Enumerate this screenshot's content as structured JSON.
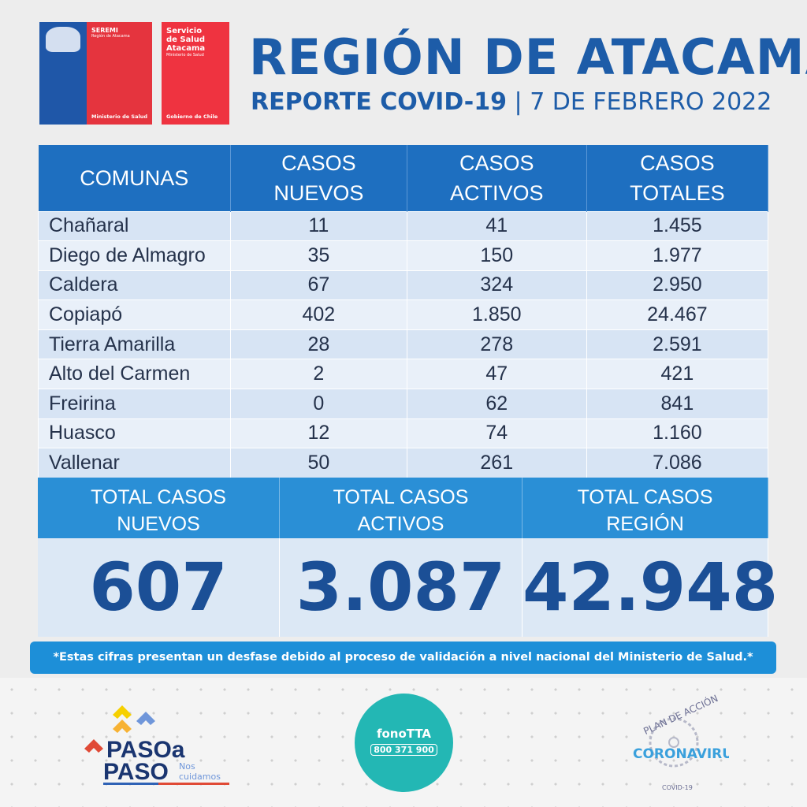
{
  "logos": {
    "seremi": {
      "title": "SEREMI",
      "region": "Región de Atacama",
      "ministry": "Ministerio de Salud"
    },
    "servicio": {
      "title": "Servicio de Salud Atacama",
      "ministry": "Ministerio de Salud",
      "gov": "Gobierno de Chile"
    },
    "paso": {
      "line1": "PASOa",
      "line2": "PASO",
      "tag": "Nos cuidamos"
    },
    "fono": {
      "name": "fonoTTA",
      "phone": "800 371 900"
    },
    "corona": {
      "top": "PLAN DE ACCIÓN",
      "main": "CORONAVIRUS",
      "bottom": "COVID-19"
    }
  },
  "header": {
    "title": "REGIÓN DE ATACAMA",
    "subtitle_bold": "REPORTE COVID-19",
    "subtitle_date": "7 DE FEBRERO 2022"
  },
  "table": {
    "columns": [
      "COMUNAS",
      "CASOS NUEVOS",
      "CASOS ACTIVOS",
      "CASOS TOTALES"
    ],
    "rows": [
      [
        "Chañaral",
        "11",
        "41",
        "1.455"
      ],
      [
        "Diego de Almagro",
        "35",
        "150",
        "1.977"
      ],
      [
        "Caldera",
        "67",
        "324",
        "2.950"
      ],
      [
        "Copiapó",
        "402",
        "1.850",
        "24.467"
      ],
      [
        "Tierra Amarilla",
        "28",
        "278",
        "2.591"
      ],
      [
        "Alto del Carmen",
        "2",
        "47",
        "421"
      ],
      [
        "Freirina",
        "0",
        "62",
        "841"
      ],
      [
        "Huasco",
        "12",
        "74",
        "1.160"
      ],
      [
        "Vallenar",
        "50",
        "261",
        "7.086"
      ]
    ]
  },
  "totals": [
    {
      "label": "TOTAL CASOS NUEVOS",
      "value": "607"
    },
    {
      "label": "TOTAL CASOS ACTIVOS",
      "value": "3.087"
    },
    {
      "label": "TOTAL CASOS REGIÓN",
      "value": "42.948"
    }
  ],
  "note": "*Estas cifras presentan un desfase debido al proceso de validación a nivel nacional del Ministerio de Salud.*",
  "colors": {
    "brand_blue": "#1d5ca8",
    "header_blue": "#1e6fc0",
    "accent_blue": "#1d8fd8",
    "red": "#e5343e",
    "teal": "#23b7b4"
  }
}
